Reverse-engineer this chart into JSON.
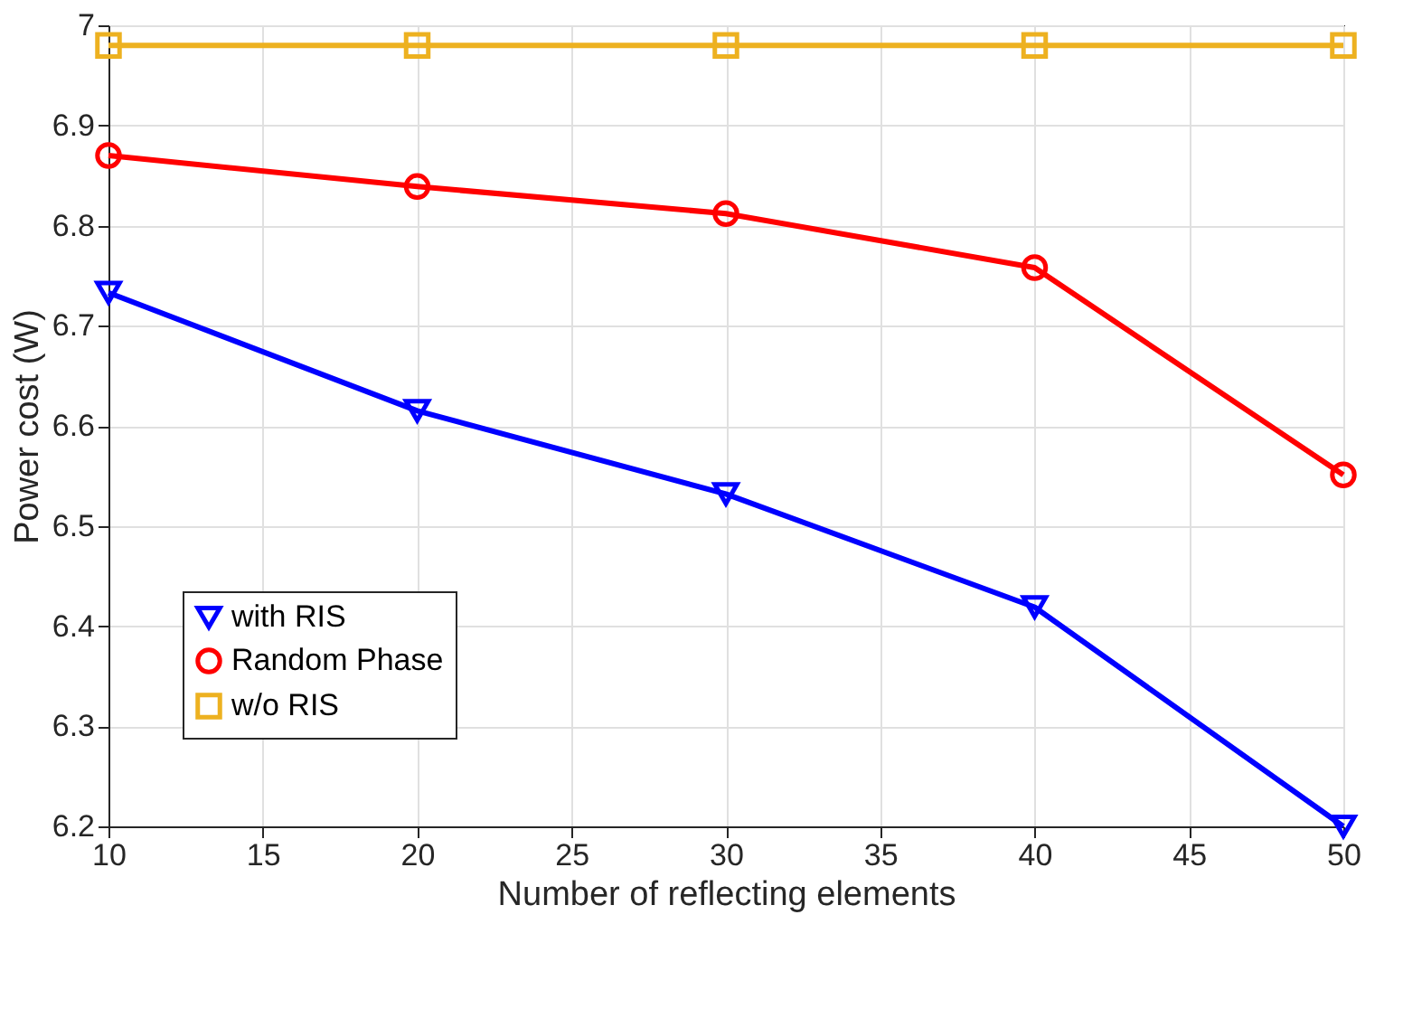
{
  "chart_data": {
    "type": "line",
    "xlabel": "Number of reflecting elements",
    "ylabel": "Power cost (W)",
    "x": [
      10,
      20,
      30,
      40,
      50
    ],
    "series": [
      {
        "name": "with RIS",
        "color": "#0000ff",
        "marker": "triangle",
        "values": [
          6.733,
          6.615,
          6.532,
          6.419,
          6.2
        ]
      },
      {
        "name": "Random Phase",
        "color": "#ff0000",
        "marker": "circle",
        "values": [
          6.87,
          6.839,
          6.812,
          6.758,
          6.551
        ]
      },
      {
        "name": "w/o RIS",
        "color": "#edb120",
        "marker": "square",
        "values": [
          6.98,
          6.98,
          6.98,
          6.98,
          6.98
        ]
      }
    ],
    "xlim": [
      10,
      50
    ],
    "xticks": [
      10,
      15,
      20,
      25,
      30,
      35,
      40,
      45,
      50
    ],
    "ylim": [
      6.2,
      7
    ],
    "yticks": [
      6.2,
      6.3,
      6.4,
      6.5,
      6.6,
      6.7,
      6.8,
      6.9,
      7
    ],
    "grid": true,
    "legend": "bottom left",
    "line_style": "solid"
  }
}
